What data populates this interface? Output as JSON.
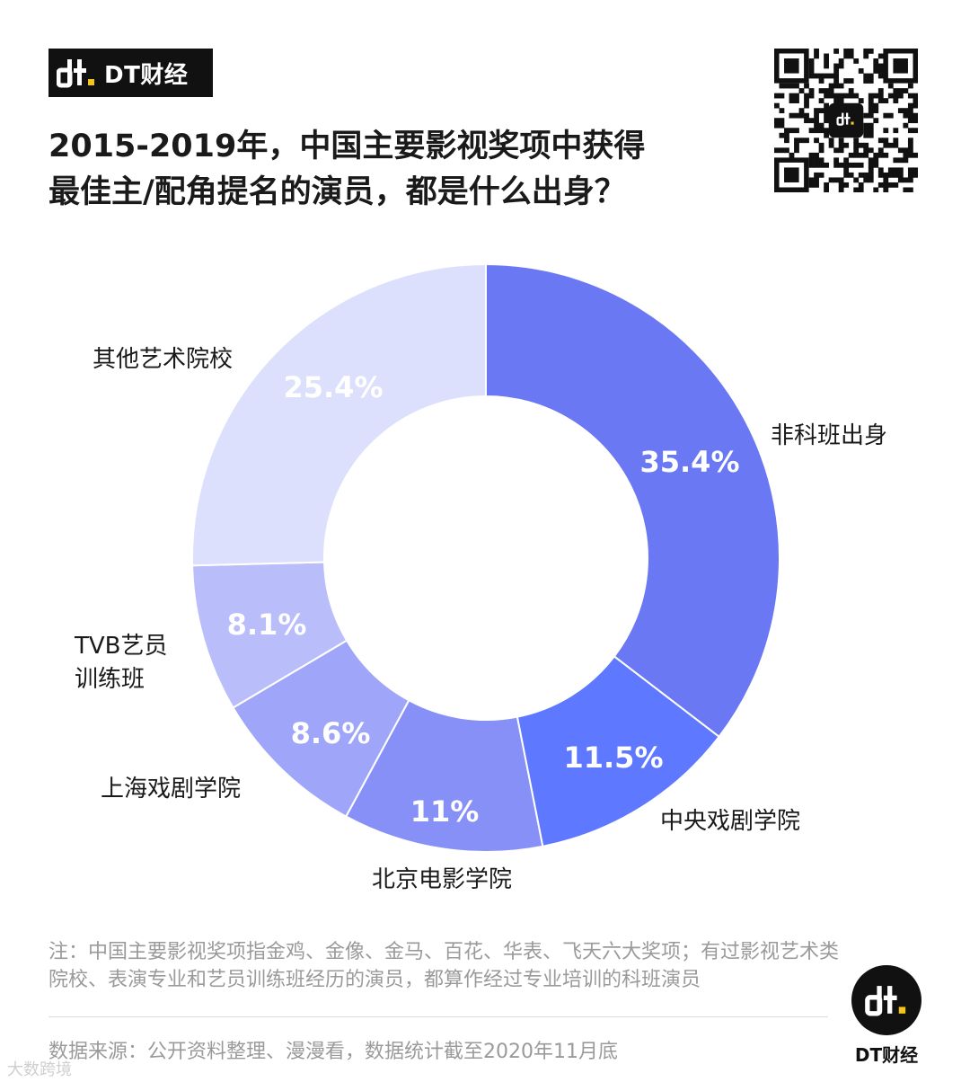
{
  "brand": {
    "name": "DT财经",
    "icon": "dt-logo-icon"
  },
  "title": {
    "line1": "2015-2019年，中国主要影视奖项中获得",
    "line2": "最佳主/配角提名的演员，都是什么出身？"
  },
  "colors": {
    "fei_ke_ban": "#6a78f3",
    "zhong_xi": "#5e78ff",
    "bei_dian": "#8790f7",
    "shang_xi": "#9fa6f9",
    "tvb": "#b9befb",
    "qi_ta": "#dde0fd"
  },
  "chart_data": {
    "type": "pie",
    "donut": true,
    "categories": [
      "非科班出身",
      "中央戏剧学院",
      "北京电影学院",
      "上海戏剧学院",
      "TVB艺员训练班",
      "其他艺术院校"
    ],
    "label_lines": [
      [
        "非科班出身"
      ],
      [
        "中央戏剧学院"
      ],
      [
        "北京电影学院"
      ],
      [
        "上海戏剧学院"
      ],
      [
        "TVB艺员",
        "训练班"
      ],
      [
        "其他艺术院校"
      ]
    ],
    "values": [
      35.4,
      11.5,
      11,
      8.6,
      8.1,
      25.4
    ],
    "value_labels": [
      "35.4%",
      "11.5%",
      "11%",
      "8.6%",
      "8.1%",
      "25.4%"
    ]
  },
  "note": "注：中国主要影视奖项指金鸡、金像、金马、百花、华表、飞天六大奖项；有过影视艺术类院校、表演专业和艺员训练班经历的演员，都算作经过专业培训的科班演员",
  "source": "数据来源：公开资料整理、漫漫看，数据统计截至2020年11月底",
  "footer": {
    "brand_name": "DT财经",
    "corner_text": "大数跨境"
  },
  "qr": {
    "icon": "qr-code-icon"
  }
}
